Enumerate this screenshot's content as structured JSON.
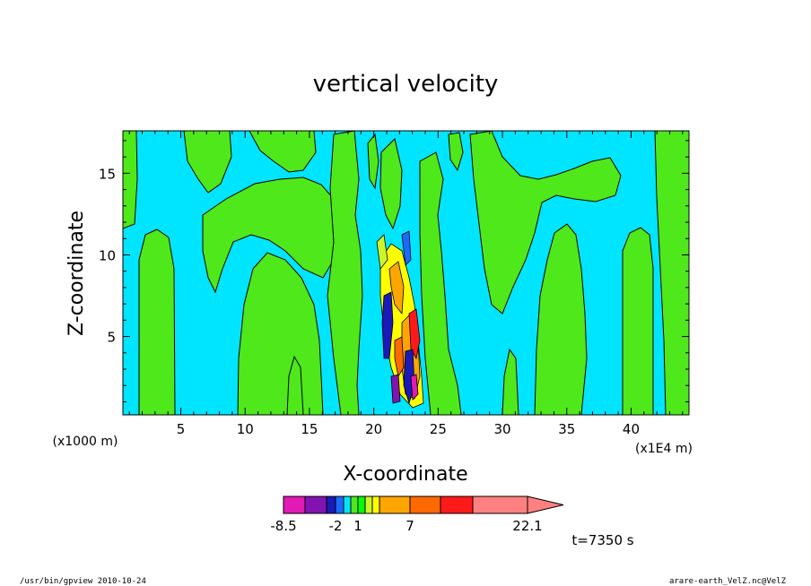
{
  "chart_data": {
    "type": "heatmap",
    "title": "vertical velocity",
    "xlabel": "X-coordinate",
    "ylabel": "Z-coordinate",
    "x_unit": "(x1E4 m)",
    "y_unit": "(x1000 m)",
    "xlim": [
      0.5,
      44.5
    ],
    "ylim": [
      0.2,
      17.6
    ],
    "x_ticks": [
      5,
      10,
      15,
      20,
      25,
      30,
      35,
      40
    ],
    "y_ticks": [
      5,
      10,
      15
    ],
    "grid": false,
    "colorbar": {
      "levels": [
        -8.5,
        -6,
        -4,
        -2,
        -1,
        0,
        1,
        2,
        3,
        4,
        7,
        10,
        12,
        22.1
      ],
      "colors": [
        "#e21ab6",
        "#8213b0",
        "#1a1ab8",
        "#1a6aff",
        "#00e5ff",
        "#4fe81a",
        "#00ff00",
        "#ccf52a",
        "#ffff00",
        "#ffa500",
        "#ff6a00",
        "#ff1a1a",
        "#ff8080"
      ],
      "tick_labels": [
        "-8.5",
        "-2",
        "1",
        "7",
        "22.1"
      ],
      "tick_values": [
        -8.5,
        -2,
        1,
        7,
        22.1
      ]
    },
    "background_color": "#00e5ff",
    "positive_region_color": "#4fe81a",
    "timestamp_label": "t=7350 s"
  },
  "footer": {
    "left": "/usr/bin/gpview  2010-10-24",
    "right": "arare-earth_VelZ.nc@VelZ"
  }
}
